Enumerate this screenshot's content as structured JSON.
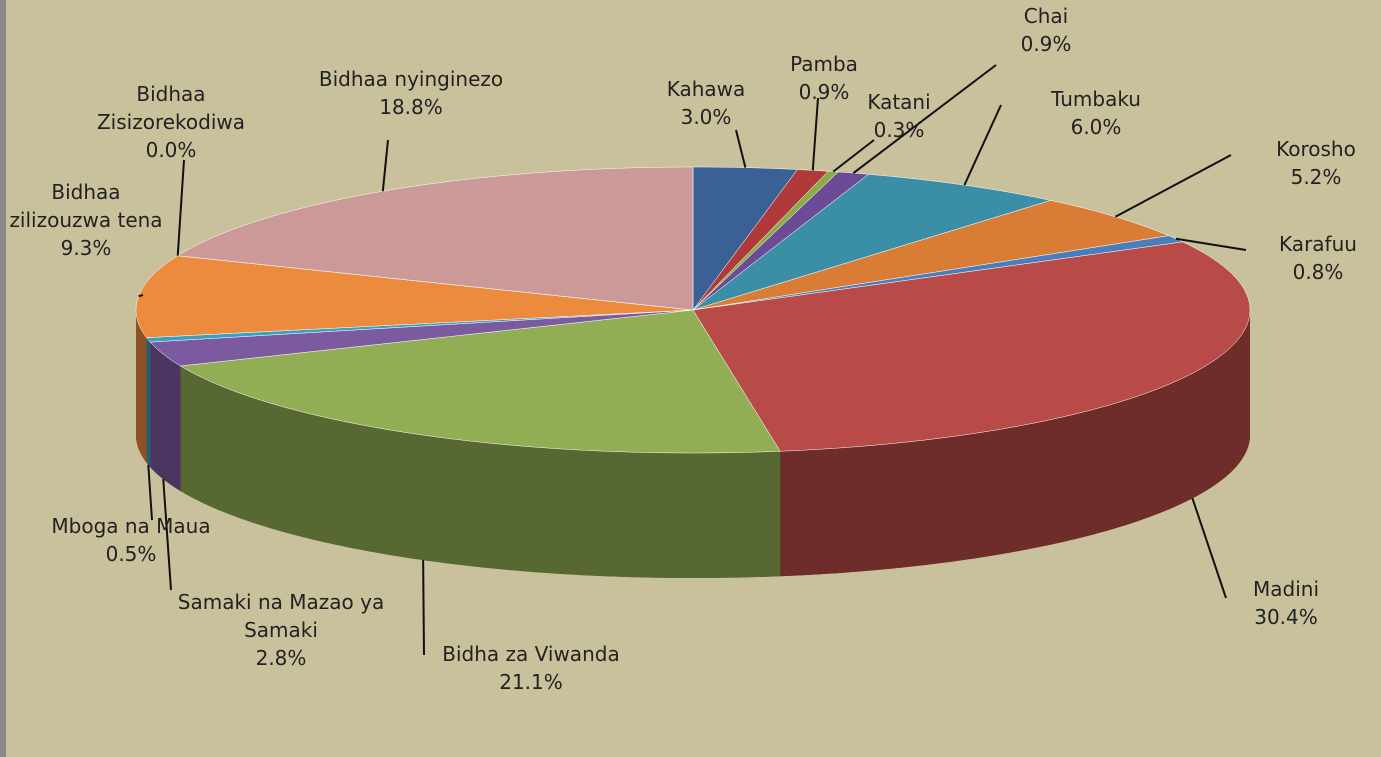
{
  "chart_data": {
    "type": "pie3d",
    "categories": [
      "Kahawa",
      "Pamba",
      "Katani",
      "Chai",
      "Tumbaku",
      "Korosho",
      "Karafuu",
      "Madini",
      "Bidha za Viwanda",
      "Samaki na Mazao ya Samaki",
      "Mboga na Maua",
      "Bidhaa zilizouzwa tena",
      "Bidhaa Zisizorekodiwa",
      "Bidhaa nyinginezo"
    ],
    "values": [
      3.0,
      0.9,
      0.3,
      0.9,
      6.0,
      5.2,
      0.8,
      30.4,
      21.1,
      2.8,
      0.5,
      9.3,
      0.0,
      18.8
    ],
    "value_labels": [
      "3.0%",
      "0.9%",
      "0.3%",
      "0.9%",
      "6.0%",
      "5.2%",
      "0.8%",
      "30.4%",
      "21.1%",
      "2.8%",
      "0.5%",
      "9.3%",
      "0.0%",
      "18.8%"
    ],
    "colors": [
      "#3a6096",
      "#b03a3a",
      "#8aab46",
      "#6b4b96",
      "#3a8fa6",
      "#d97c36",
      "#4a7ebb",
      "#b84a48",
      "#92ae54",
      "#7b5aa0",
      "#3aa0c0",
      "#ec8b3e",
      "#4a7ebb",
      "#cc9999"
    ]
  }
}
